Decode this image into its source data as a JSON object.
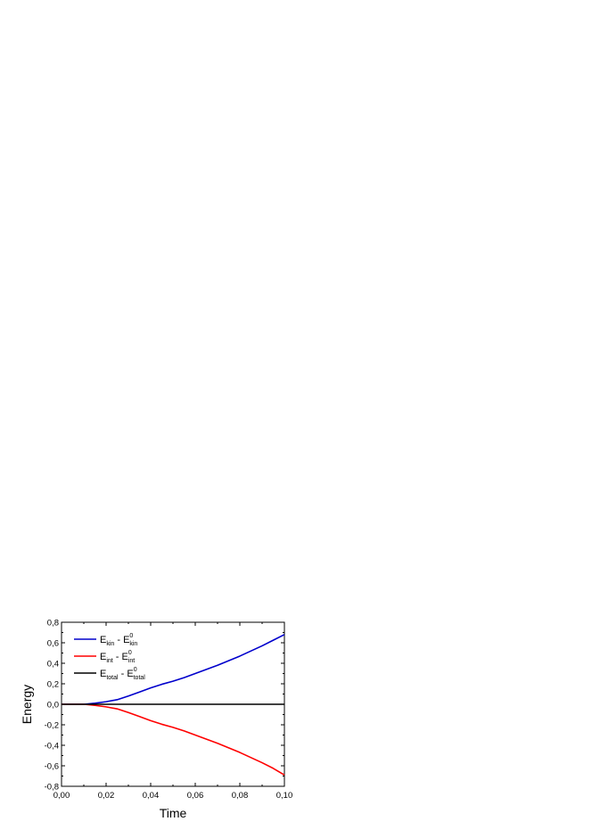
{
  "chart_data": {
    "type": "line",
    "xlabel": "Time",
    "ylabel": "Energy",
    "xlim": [
      0.0,
      0.1
    ],
    "ylim": [
      -0.8,
      0.8
    ],
    "xticks": [
      "0,00",
      "0,02",
      "0,04",
      "0,06",
      "0,08",
      "0,10"
    ],
    "yticks": [
      "-0,8",
      "-0,6",
      "-0,4",
      "-0,2",
      "0,0",
      "0,2",
      "0,4",
      "0,6",
      "0,8"
    ],
    "grid": false,
    "legend_position": "top-left",
    "series": [
      {
        "name": "E_kin - E^0_kin",
        "legend": {
          "base": "E",
          "sub1": "kin",
          "sup": "0",
          "sub2": "kin"
        },
        "color": "#0000cc",
        "x": [
          0.0,
          0.01,
          0.015,
          0.02,
          0.025,
          0.03,
          0.035,
          0.04,
          0.045,
          0.05,
          0.055,
          0.06,
          0.065,
          0.07,
          0.075,
          0.08,
          0.085,
          0.09,
          0.095,
          0.1
        ],
        "y": [
          0.0,
          0.0,
          0.01,
          0.025,
          0.045,
          0.08,
          0.12,
          0.16,
          0.195,
          0.225,
          0.26,
          0.3,
          0.34,
          0.38,
          0.425,
          0.47,
          0.52,
          0.57,
          0.625,
          0.68
        ]
      },
      {
        "name": "E_int - E^0_int",
        "legend": {
          "base": "E",
          "sub1": "int",
          "sup": "0",
          "sub2": "int"
        },
        "color": "#ff0000",
        "x": [
          0.0,
          0.01,
          0.015,
          0.02,
          0.025,
          0.03,
          0.035,
          0.04,
          0.045,
          0.05,
          0.055,
          0.06,
          0.065,
          0.07,
          0.075,
          0.08,
          0.085,
          0.09,
          0.095,
          0.1
        ],
        "y": [
          0.0,
          0.0,
          -0.01,
          -0.025,
          -0.045,
          -0.08,
          -0.12,
          -0.16,
          -0.195,
          -0.225,
          -0.26,
          -0.3,
          -0.34,
          -0.38,
          -0.425,
          -0.47,
          -0.52,
          -0.57,
          -0.625,
          -0.69
        ]
      },
      {
        "name": "E_total - E^0_total",
        "legend": {
          "base": "E",
          "sub1": "total",
          "sup": "0",
          "sub2": "total"
        },
        "color": "#000000",
        "x": [
          0.0,
          0.1
        ],
        "y": [
          0.0,
          0.0
        ]
      }
    ]
  }
}
